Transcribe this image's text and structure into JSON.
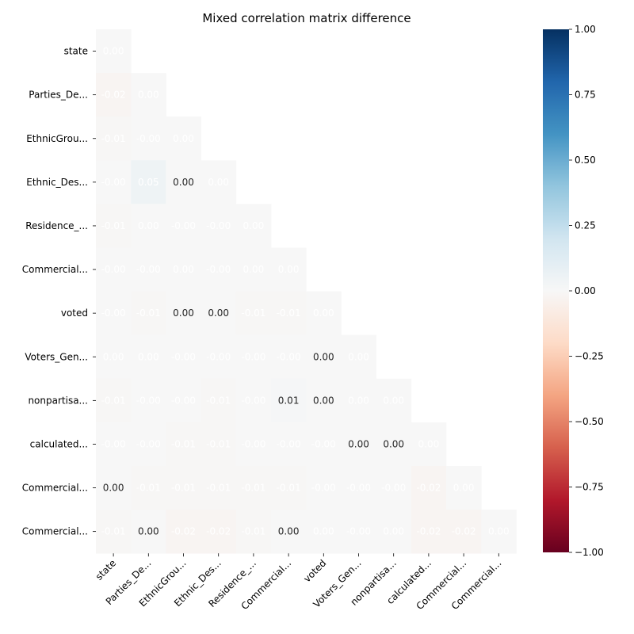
{
  "chart_data": {
    "type": "heatmap",
    "title": "Mixed correlation matrix difference",
    "labels": [
      "state",
      "Parties_De...",
      "EthnicGrou...",
      "Ethnic_Des...",
      "Residence_...",
      "Commercial...",
      "voted",
      "Voters_Gen...",
      "nonpartisa...",
      "calculated...",
      "Commercial...",
      "Commercial..."
    ],
    "mask": "upper-triangle",
    "colormap": "RdBu",
    "vmin": -1.0,
    "vmax": 1.0,
    "colorbar_ticks": [
      "1.00",
      "0.75",
      "0.50",
      "0.25",
      "0.00",
      "−0.25",
      "−0.50",
      "−0.75",
      "−1.00"
    ],
    "colorbar_tick_values": [
      1.0,
      0.75,
      0.5,
      0.25,
      0.0,
      -0.25,
      -0.5,
      -0.75,
      -1.0
    ],
    "rows": [
      {
        "values": [
          0.0
        ],
        "labels": [
          "0.00"
        ]
      },
      {
        "values": [
          -0.02,
          0.0
        ],
        "labels": [
          "-0.02",
          "0.00"
        ]
      },
      {
        "values": [
          -0.01,
          -0.0,
          0.0
        ],
        "labels": [
          "-0.01",
          "-0.00",
          "0.00"
        ]
      },
      {
        "values": [
          -0.0,
          0.05,
          0.0,
          0.0
        ],
        "labels": [
          "-0.00",
          "0.05",
          "0.00",
          "0.00"
        ]
      },
      {
        "values": [
          -0.01,
          0.0,
          -0.0,
          -0.0,
          0.0
        ],
        "labels": [
          "-0.01",
          "0.00",
          "-0.00",
          "-0.00",
          "0.00"
        ]
      },
      {
        "values": [
          -0.0,
          -0.0,
          0.0,
          -0.0,
          0.0,
          0.0
        ],
        "labels": [
          "-0.00",
          "-0.00",
          "0.00",
          "-0.00",
          "0.00",
          "0.00"
        ]
      },
      {
        "values": [
          -0.0,
          -0.01,
          0.0,
          0.0,
          -0.01,
          -0.01,
          0.0
        ],
        "labels": [
          "-0.00",
          "-0.01",
          "0.00",
          "0.00",
          "-0.01",
          "-0.01",
          "0.00"
        ]
      },
      {
        "values": [
          0.0,
          0.0,
          -0.0,
          -0.0,
          -0.0,
          -0.0,
          0.0,
          0.0
        ],
        "labels": [
          "0.00",
          "0.00",
          "-0.00",
          "-0.00",
          "-0.00",
          "-0.00",
          "0.00",
          "0.00"
        ]
      },
      {
        "values": [
          -0.01,
          -0.0,
          -0.0,
          -0.01,
          -0.0,
          0.01,
          0.0,
          0.0,
          0.0
        ],
        "labels": [
          "-0.01",
          "-0.00",
          "-0.00",
          "-0.01",
          "-0.00",
          "0.01",
          "0.00",
          "0.00",
          "0.00"
        ]
      },
      {
        "values": [
          -0.0,
          -0.0,
          -0.01,
          -0.01,
          -0.0,
          -0.0,
          -0.0,
          0.0,
          0.0,
          0.0
        ],
        "labels": [
          "-0.00",
          "-0.00",
          "-0.01",
          "-0.01",
          "-0.00",
          "-0.00",
          "-0.00",
          "0.00",
          "0.00",
          "0.00"
        ]
      },
      {
        "values": [
          0.0,
          -0.01,
          -0.01,
          -0.01,
          -0.01,
          -0.01,
          -0.0,
          -0.0,
          -0.0,
          -0.02,
          0.0
        ],
        "labels": [
          "0.00",
          "-0.01",
          "-0.01",
          "-0.01",
          "-0.01",
          "-0.01",
          "-0.00",
          "-0.00",
          "-0.00",
          "-0.02",
          "0.00"
        ]
      },
      {
        "values": [
          -0.01,
          0.0,
          -0.02,
          -0.02,
          -0.01,
          0.0,
          0.0,
          -0.0,
          0.0,
          -0.02,
          -0.02,
          0.0
        ],
        "labels": [
          "-0.01",
          "0.00",
          "-0.02",
          "-0.02",
          "-0.01",
          "0.00",
          "0.00",
          "-0.00",
          "0.00",
          "-0.02",
          "-0.02",
          "0.00"
        ]
      }
    ],
    "dark_text_cells": [
      [
        3,
        2
      ],
      [
        6,
        2
      ],
      [
        6,
        3
      ],
      [
        7,
        6
      ],
      [
        8,
        5
      ],
      [
        8,
        6
      ],
      [
        9,
        7
      ],
      [
        9,
        8
      ],
      [
        10,
        0
      ],
      [
        11,
        1
      ],
      [
        11,
        5
      ]
    ],
    "dark_text_color": "#262626",
    "light_text_color": "#ffffff"
  }
}
